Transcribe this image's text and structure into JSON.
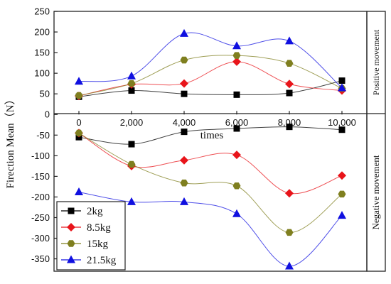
{
  "chart_data": {
    "type": "line",
    "xlabel": "times",
    "ylabel": "Firection Mean（N）",
    "right_labels": {
      "top": "Positive movement",
      "bottom": "Negative movement"
    },
    "x": [
      0,
      2000,
      4000,
      6000,
      8000,
      10000
    ],
    "x_tick_labels": [
      "0",
      "2,000",
      "4,000",
      "6,000",
      "8,000",
      "10,000"
    ],
    "ylim": [
      -380,
      250
    ],
    "y_ticks": [
      250,
      200,
      150,
      100,
      50,
      0,
      -50,
      -100,
      -150,
      -200,
      -250,
      -300,
      -350
    ],
    "y_tick_labels": [
      "250",
      "200",
      "150",
      "100",
      "50",
      "0",
      "-50",
      "-100",
      "-150",
      "-200",
      "-250",
      "-300",
      "-350"
    ],
    "legend_position": "bottom-left",
    "series": [
      {
        "name": "2kg",
        "color": "#000000",
        "marker": "square",
        "positive": [
          43,
          58,
          50,
          48,
          52,
          82
        ],
        "negative": [
          -55,
          -72,
          -42,
          -34,
          -30,
          -37
        ]
      },
      {
        "name": "8.5kg",
        "color": "#e8141a",
        "marker": "diamond",
        "positive": [
          45,
          73,
          75,
          128,
          74,
          58
        ],
        "negative": [
          -45,
          -125,
          -111,
          -98,
          -191,
          -148
        ]
      },
      {
        "name": "15kg",
        "color": "#7f7f1f",
        "marker": "hexagon",
        "positive": [
          46,
          75,
          132,
          143,
          124,
          63
        ],
        "negative": [
          -45,
          -121,
          -166,
          -173,
          -286,
          -193
        ]
      },
      {
        "name": "21.5kg",
        "color": "#1010e0",
        "marker": "triangle",
        "positive": [
          80,
          93,
          196,
          166,
          178,
          64
        ],
        "negative": [
          -188,
          -212,
          -212,
          -241,
          -368,
          -245
        ]
      }
    ]
  }
}
